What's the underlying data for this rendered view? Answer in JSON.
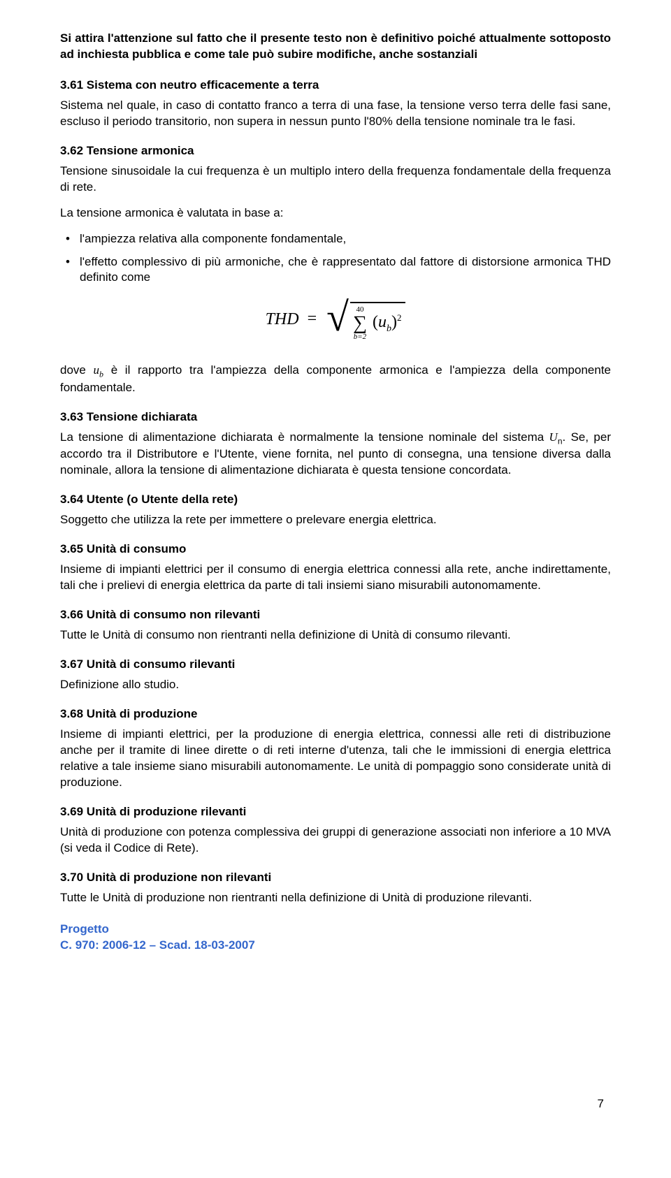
{
  "header_note": "Si attira l'attenzione sul fatto che il presente testo non è definitivo poiché attualmente sottoposto ad inchiesta pubblica e come tale può subire modifiche, anche sostanziali",
  "s361": {
    "head": "3.61  Sistema con neutro efficacemente a terra",
    "text": "Sistema nel quale, in caso di contatto franco a terra di una fase, la tensione verso terra delle fasi sane, escluso il periodo transitorio, non supera in nessun punto l'80% della tensione nominale tra le fasi."
  },
  "s362": {
    "head": "3.62  Tensione armonica",
    "p1": "Tensione sinusoidale la cui frequenza è un multiplo intero della frequenza fondamentale della frequenza di rete.",
    "p2": "La tensione armonica è valutata in base a:",
    "b1": "l'ampiezza relativa alla componente fondamentale,",
    "b2": "l'effetto complessivo di più armoniche, che è rappresentato dal fattore di distorsione armonica THD definito come",
    "formula": {
      "lhs": "THD",
      "upper": "40",
      "lower": "b=2",
      "var": "u",
      "sub": "b",
      "sup": "2"
    },
    "p3_pre": "dove ",
    "p3_var": "u",
    "p3_sub": "b",
    "p3_post": " è il rapporto tra l'ampiezza della componente armonica e l'ampiezza della componente fondamentale."
  },
  "s363": {
    "head": "3.63  Tensione dichiarata",
    "p_pre": "La tensione di alimentazione dichiarata è normalmente la tensione nominale del sistema ",
    "p_var": "U",
    "p_sub": "n",
    "p_post": ". Se, per accordo tra il Distributore e l'Utente, viene fornita, nel punto di consegna, una tensione diversa dalla nominale, allora la tensione di alimentazione dichiarata è questa tensione concordata."
  },
  "s364": {
    "head": "3.64  Utente (o Utente della rete)",
    "text": "Soggetto che utilizza la rete per immettere o prelevare energia elettrica."
  },
  "s365": {
    "head": "3.65  Unità di consumo",
    "text": "Insieme di impianti elettrici per il consumo di energia elettrica connessi alla rete, anche indirettamente, tali che i prelievi di energia elettrica da parte di tali insiemi siano misurabili autonomamente."
  },
  "s366": {
    "head": "3.66  Unità di consumo non rilevanti",
    "text": "Tutte le Unità di consumo non rientranti nella definizione di Unità di consumo rilevanti."
  },
  "s367": {
    "head": "3.67  Unità di consumo rilevanti",
    "text": "Definizione allo studio."
  },
  "s368": {
    "head": "3.68  Unità di produzione",
    "text": "Insieme di impianti elettrici, per la produzione di energia elettrica, connessi alle reti di distribuzione anche per il tramite di linee dirette o di reti interne d'utenza, tali che le immissioni di energia elettrica relative a tale insieme siano misurabili autonomamente. Le unità di pompaggio sono considerate unità di produzione."
  },
  "s369": {
    "head": "3.69  Unità di produzione rilevanti",
    "text": "Unità di produzione con potenza complessiva dei gruppi di generazione associati non inferiore a 10 MVA (si veda il Codice di Rete)."
  },
  "s370": {
    "head": "3.70  Unità di produzione non rilevanti",
    "text": "Tutte le Unità di produzione non rientranti nella definizione di Unità di produzione rilevanti."
  },
  "footer": {
    "l1": "Progetto",
    "l2": "C. 970: 2006-12 – Scad. 18-03-2007"
  },
  "page_number": "7"
}
